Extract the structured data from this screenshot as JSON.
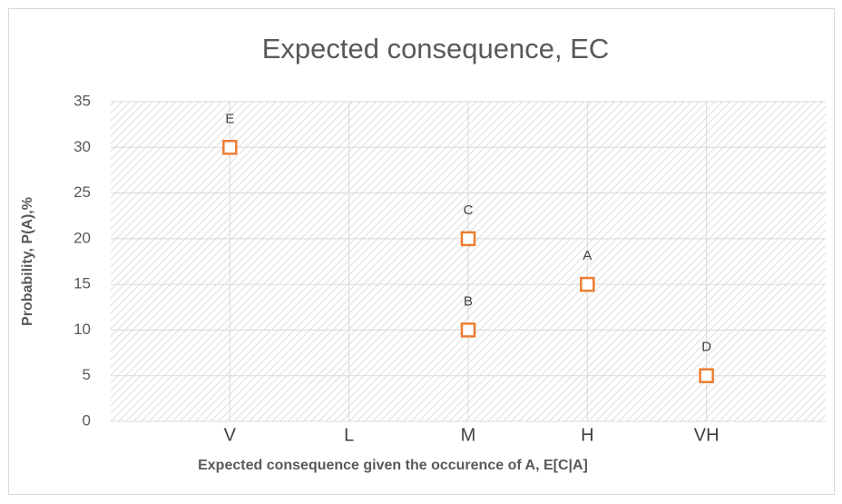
{
  "chart_data": {
    "type": "scatter",
    "title": "Expected consequence, EC",
    "x_label": "Expected consequence given the occurence of A, E[C|A]",
    "y_label": "Probability, P(A),%",
    "x": [
      1,
      3,
      3,
      4,
      5
    ],
    "values": [
      30,
      20,
      10,
      15,
      5
    ],
    "point_labels": [
      "E",
      "C",
      "B",
      "A",
      "D"
    ],
    "color": "#ed7d31",
    "xlim": [
      0,
      6
    ],
    "xticks": [
      {
        "value": 1,
        "label": "V"
      },
      {
        "value": 2,
        "label": "L"
      },
      {
        "value": 3,
        "label": "M"
      },
      {
        "value": 4,
        "label": "H"
      },
      {
        "value": 5,
        "label": "VH"
      }
    ],
    "ylim": [
      0,
      35
    ],
    "yticks": [
      0,
      5,
      10,
      15,
      20,
      25,
      30,
      35
    ],
    "grid": true
  }
}
